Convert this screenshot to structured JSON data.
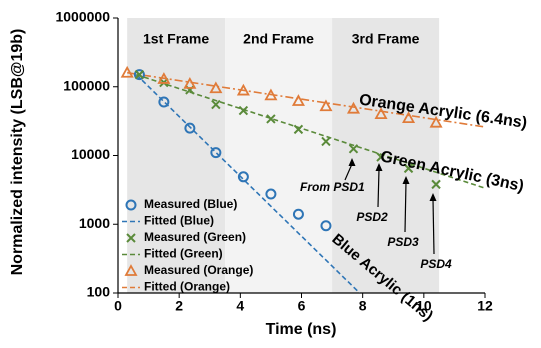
{
  "chart_data": {
    "type": "scatter",
    "xlabel": "Time (ns)",
    "ylabel": "Normalized intensity (LSB@19b)",
    "xlim": [
      0,
      12
    ],
    "xticks": [
      0,
      2,
      4,
      6,
      8,
      10,
      12
    ],
    "ylim": [
      100,
      1000000
    ],
    "yticks": [
      100,
      1000,
      10000,
      100000,
      1000000
    ],
    "ylog": true,
    "grid": false,
    "legend": "lower left",
    "frames": [
      {
        "label": "1st Frame",
        "range": [
          0.3,
          3.5
        ],
        "color": "#e6e6e6"
      },
      {
        "label": "2nd Frame",
        "range": [
          3.5,
          7
        ],
        "color": "#f3f3f3"
      },
      {
        "label": "3rd Frame",
        "range": [
          7,
          10.5
        ],
        "color": "#e6e6e6"
      }
    ],
    "series": [
      {
        "name": "Measured (Blue)",
        "color": "#2e75b6",
        "marker": "circle",
        "x": [
          0.7,
          1.5,
          2.35,
          3.2,
          4.1,
          5.0,
          5.9,
          6.8
        ],
        "values": [
          150000,
          60000,
          25000,
          11000,
          4900,
          2750,
          1400,
          950
        ]
      },
      {
        "name": "Fitted (Blue)",
        "color": "#2e75b6",
        "marker": "line",
        "x": [
          0.6,
          7.9
        ],
        "values": [
          150000,
          100
        ]
      },
      {
        "name": "Measured (Green)",
        "color": "#5a8a3a",
        "marker": "x",
        "x": [
          0.7,
          1.5,
          2.35,
          3.2,
          4.1,
          5.0,
          5.9,
          6.8,
          7.7,
          8.6,
          9.5,
          10.4
        ],
        "values": [
          150000,
          115000,
          90000,
          55000,
          45000,
          34000,
          24000,
          16000,
          12500,
          9500,
          6500,
          3800
        ]
      },
      {
        "name": "Fitted (Green)",
        "color": "#5a8a3a",
        "marker": "line",
        "x": [
          0.6,
          12
        ],
        "values": [
          150000,
          3350
        ]
      },
      {
        "name": "Measured (Orange)",
        "color": "#e07b39",
        "marker": "triangle",
        "x": [
          0.3,
          1.5,
          2.35,
          3.2,
          4.1,
          5.0,
          5.9,
          6.8,
          7.7,
          8.6,
          9.5,
          10.4
        ],
        "values": [
          160000,
          130000,
          110000,
          95000,
          88000,
          75000,
          62000,
          52000,
          48000,
          40000,
          35000,
          30000
        ]
      },
      {
        "name": "Fitted (Orange)",
        "color": "#e07b39",
        "marker": "line",
        "x": [
          0.3,
          12
        ],
        "values": [
          160000,
          26000
        ]
      }
    ],
    "annotations": [
      "Orange Acrylic (6.4ns)",
      "Green Acrylic (3ns)",
      "Blue Acrylic (1ns)",
      "From PSD1",
      "PSD2",
      "PSD3",
      "PSD4"
    ]
  }
}
